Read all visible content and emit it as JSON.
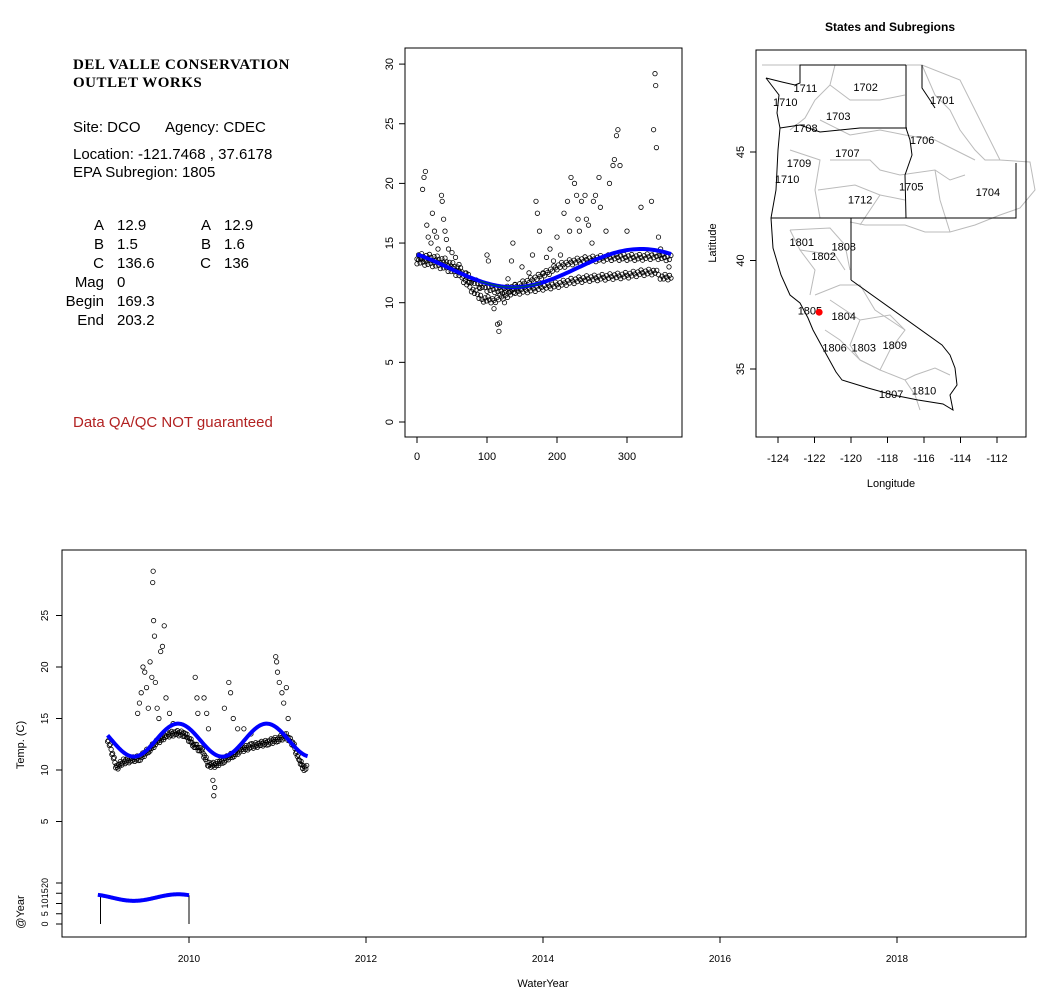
{
  "info": {
    "title_line1": "DEL VALLE CONSERVATION",
    "title_line2": "OUTLET WORKS",
    "site": "Site: DCO",
    "agency": "Agency: CDEC",
    "location": "Location: -121.7468 , 37.6178",
    "epa_subregion": "EPA Subregion: 1805",
    "params_left": [
      [
        "A",
        "12.9"
      ],
      [
        "B",
        "1.5"
      ],
      [
        "C",
        "136.6"
      ],
      [
        "Mag",
        "0"
      ],
      [
        "Begin",
        "169.3"
      ],
      [
        "End",
        "203.2"
      ]
    ],
    "params_right": [
      [
        "A",
        "12.9"
      ],
      [
        "B",
        "1.6"
      ],
      [
        "C",
        "136"
      ]
    ],
    "disclaimer": "Data QA/QC NOT guaranteed",
    "disclaimer_color": "#b22222"
  },
  "chart_data": [
    {
      "type": "scatter",
      "name": "seasonal",
      "xlabel": "",
      "ylabel": "",
      "xlim": [
        0,
        365
      ],
      "ylim": [
        0,
        30
      ],
      "xticks": [
        "0",
        "100",
        "200",
        "300"
      ],
      "yticks": [
        "0",
        "5",
        "10",
        "15",
        "20",
        "25",
        "30"
      ],
      "fit": {
        "mean": 12.9,
        "amplitude": 1.6,
        "peak_day": 320,
        "color": "#0000ff"
      },
      "trace_color": "#008000",
      "dense_traces": [
        [
          [
            0,
            13.5
          ],
          [
            20,
            13.3
          ],
          [
            40,
            13.0
          ],
          [
            60,
            12.4
          ],
          [
            80,
            11.0
          ],
          [
            95,
            10.3
          ],
          [
            110,
            10.2
          ],
          [
            125,
            10.6
          ],
          [
            140,
            10.9
          ],
          [
            160,
            11.1
          ],
          [
            180,
            11.3
          ],
          [
            200,
            11.5
          ],
          [
            220,
            11.8
          ],
          [
            240,
            12.0
          ],
          [
            260,
            12.1
          ],
          [
            280,
            12.2
          ],
          [
            300,
            12.3
          ],
          [
            320,
            12.5
          ],
          [
            340,
            12.6
          ],
          [
            350,
            12.1
          ],
          [
            365,
            12.2
          ]
        ],
        [
          [
            0,
            13.9
          ],
          [
            20,
            13.8
          ],
          [
            40,
            13.5
          ],
          [
            60,
            12.8
          ],
          [
            80,
            11.8
          ],
          [
            100,
            11.2
          ],
          [
            120,
            11.0
          ],
          [
            140,
            11.3
          ],
          [
            160,
            11.8
          ],
          [
            180,
            12.3
          ],
          [
            200,
            13.0
          ],
          [
            220,
            13.4
          ],
          [
            240,
            13.6
          ],
          [
            260,
            13.7
          ],
          [
            280,
            13.8
          ],
          [
            300,
            13.8
          ],
          [
            320,
            13.8
          ],
          [
            340,
            13.9
          ],
          [
            365,
            13.7
          ]
        ]
      ],
      "points": [
        [
          8,
          19.5
        ],
        [
          10,
          20.5
        ],
        [
          12,
          21
        ],
        [
          14,
          16.5
        ],
        [
          16,
          15.5
        ],
        [
          20,
          15
        ],
        [
          22,
          17.5
        ],
        [
          25,
          16
        ],
        [
          28,
          15.5
        ],
        [
          30,
          14.5
        ],
        [
          35,
          19
        ],
        [
          36,
          18.5
        ],
        [
          38,
          17
        ],
        [
          40,
          16
        ],
        [
          42,
          15.3
        ],
        [
          45,
          14.5
        ],
        [
          50,
          14.2
        ],
        [
          55,
          13.8
        ],
        [
          60,
          13.2
        ],
        [
          70,
          12.5
        ],
        [
          75,
          11.7
        ],
        [
          90,
          11.2
        ],
        [
          100,
          14
        ],
        [
          102,
          13.5
        ],
        [
          110,
          9.5
        ],
        [
          115,
          8.2
        ],
        [
          117,
          7.6
        ],
        [
          118,
          8.3
        ],
        [
          125,
          10
        ],
        [
          130,
          12
        ],
        [
          135,
          13.5
        ],
        [
          137,
          15
        ],
        [
          140,
          11.5
        ],
        [
          150,
          13
        ],
        [
          160,
          12.5
        ],
        [
          165,
          14
        ],
        [
          170,
          18.5
        ],
        [
          172,
          17.5
        ],
        [
          175,
          16
        ],
        [
          180,
          12.5
        ],
        [
          185,
          13.8
        ],
        [
          190,
          14.5
        ],
        [
          195,
          13.5
        ],
        [
          200,
          15.5
        ],
        [
          205,
          14
        ],
        [
          210,
          17.5
        ],
        [
          215,
          18.5
        ],
        [
          218,
          16
        ],
        [
          220,
          20.5
        ],
        [
          225,
          20
        ],
        [
          228,
          19
        ],
        [
          230,
          17
        ],
        [
          232,
          16
        ],
        [
          235,
          18.5
        ],
        [
          240,
          19
        ],
        [
          242,
          17
        ],
        [
          245,
          16.5
        ],
        [
          250,
          15
        ],
        [
          252,
          18.5
        ],
        [
          255,
          19
        ],
        [
          260,
          20.5
        ],
        [
          262,
          18
        ],
        [
          270,
          16
        ],
        [
          275,
          20
        ],
        [
          280,
          21.5
        ],
        [
          282,
          22
        ],
        [
          285,
          24
        ],
        [
          287,
          24.5
        ],
        [
          290,
          21.5
        ],
        [
          300,
          16
        ],
        [
          320,
          18
        ],
        [
          335,
          18.5
        ],
        [
          338,
          24.5
        ],
        [
          340,
          29.2
        ],
        [
          341,
          28.2
        ],
        [
          342,
          23
        ],
        [
          345,
          15.5
        ],
        [
          348,
          14.5
        ],
        [
          350,
          14
        ],
        [
          360,
          13
        ]
      ]
    },
    {
      "type": "map",
      "title": "States and Subregions",
      "xlabel": "Longitude",
      "ylabel": "Latitude",
      "xticks": [
        "-124",
        "-122",
        "-120",
        "-118",
        "-116",
        "-114",
        "-112"
      ],
      "yticks": [
        "35",
        "40",
        "45"
      ],
      "site": {
        "lon": -121.7468,
        "lat": 37.6178,
        "color": "#ff0000"
      },
      "labels": [
        [
          "1711",
          -122.5,
          47.95
        ],
        [
          "1702",
          -119.2,
          48.0
        ],
        [
          "1701",
          -115.0,
          47.4
        ],
        [
          "1710",
          -123.6,
          47.3
        ],
        [
          "1703",
          -120.7,
          46.65
        ],
        [
          "1708",
          -122.5,
          46.1
        ],
        [
          "1706",
          -116.1,
          45.55
        ],
        [
          "1707",
          -120.2,
          44.95
        ],
        [
          "1709",
          -122.85,
          44.5
        ],
        [
          "1710",
          -123.5,
          43.75
        ],
        [
          "1705",
          -116.7,
          43.4
        ],
        [
          "1704",
          -112.5,
          43.15
        ],
        [
          "1712",
          -119.5,
          42.8
        ],
        [
          "1801",
          -122.7,
          40.85
        ],
        [
          "1808",
          -120.4,
          40.65
        ],
        [
          "1802",
          -121.5,
          40.2
        ],
        [
          "1805",
          -122.25,
          37.7
        ],
        [
          "1804",
          -120.4,
          37.45
        ],
        [
          "1806",
          -120.9,
          36.0
        ],
        [
          "1803",
          -119.3,
          36.0
        ],
        [
          "1809",
          -117.6,
          36.1
        ],
        [
          "1807",
          -117.8,
          33.85
        ],
        [
          "1810",
          -116.0,
          34.0
        ]
      ]
    },
    {
      "type": "scatter",
      "name": "timeseries",
      "xlabel": "WaterYear",
      "ylabel": "Temp. (C)",
      "ylabel2": "@Year",
      "xlim": [
        2008.6,
        2019.4
      ],
      "ylim": [
        3,
        30
      ],
      "xticks": [
        "2010",
        "2012",
        "2014",
        "2016",
        "2018"
      ],
      "yticks": [
        "5",
        "10",
        "15",
        "20",
        "25"
      ],
      "yticks2": [
        "0",
        "5",
        "10",
        "15",
        "20"
      ],
      "fit": {
        "mean": 12.9,
        "amplitude": 1.6,
        "peak_offset": 0.877,
        "start": 2009.08,
        "end": 2011.34,
        "color": "#0000ff"
      },
      "annual_fit": {
        "start": 2008.97,
        "end": 2010.0,
        "marks": [
          2009,
          2010
        ]
      },
      "dense_trace": [
        [
          2009.08,
          13
        ],
        [
          2009.12,
          12
        ],
        [
          2009.18,
          10.2
        ],
        [
          2009.25,
          10.8
        ],
        [
          2009.35,
          11
        ],
        [
          2009.45,
          11.2
        ],
        [
          2009.55,
          12
        ],
        [
          2009.65,
          12.8
        ],
        [
          2009.75,
          13.4
        ],
        [
          2009.85,
          13.6
        ],
        [
          2009.95,
          13.5
        ],
        [
          2010.05,
          12.5
        ],
        [
          2010.15,
          11.8
        ],
        [
          2010.22,
          10.5
        ],
        [
          2010.3,
          10.5
        ],
        [
          2010.4,
          11
        ],
        [
          2010.5,
          11.5
        ],
        [
          2010.6,
          12
        ],
        [
          2010.7,
          12.3
        ],
        [
          2010.8,
          12.5
        ],
        [
          2010.9,
          12.7
        ],
        [
          2011.0,
          13
        ],
        [
          2011.1,
          13.3
        ],
        [
          2011.18,
          12.5
        ],
        [
          2011.25,
          10.8
        ],
        [
          2011.3,
          10.2
        ],
        [
          2011.34,
          10.2
        ]
      ],
      "points": [
        [
          2009.42,
          15.5
        ],
        [
          2009.44,
          16.5
        ],
        [
          2009.46,
          17.5
        ],
        [
          2009.48,
          20
        ],
        [
          2009.5,
          19.5
        ],
        [
          2009.52,
          18
        ],
        [
          2009.54,
          16
        ],
        [
          2009.56,
          20.5
        ],
        [
          2009.58,
          19
        ],
        [
          2009.59,
          28.2
        ],
        [
          2009.595,
          29.3
        ],
        [
          2009.6,
          24.5
        ],
        [
          2009.61,
          23
        ],
        [
          2009.62,
          18.5
        ],
        [
          2009.64,
          16
        ],
        [
          2009.66,
          15
        ],
        [
          2009.68,
          21.5
        ],
        [
          2009.7,
          22
        ],
        [
          2009.72,
          24
        ],
        [
          2009.74,
          17
        ],
        [
          2009.78,
          15.5
        ],
        [
          2009.82,
          14.5
        ],
        [
          2010.07,
          19
        ],
        [
          2010.09,
          17
        ],
        [
          2010.1,
          15.5
        ],
        [
          2010.17,
          17
        ],
        [
          2010.2,
          15.5
        ],
        [
          2010.22,
          14
        ],
        [
          2010.27,
          9
        ],
        [
          2010.28,
          7.5
        ],
        [
          2010.29,
          8.3
        ],
        [
          2010.4,
          16
        ],
        [
          2010.45,
          18.5
        ],
        [
          2010.47,
          17.5
        ],
        [
          2010.5,
          15
        ],
        [
          2010.55,
          14
        ],
        [
          2010.62,
          14
        ],
        [
          2010.7,
          13.5
        ],
        [
          2010.98,
          21
        ],
        [
          2010.99,
          20.5
        ],
        [
          2011.0,
          19.5
        ],
        [
          2011.02,
          18.5
        ],
        [
          2011.05,
          17.5
        ],
        [
          2011.07,
          16.5
        ],
        [
          2011.1,
          18
        ],
        [
          2011.12,
          15
        ]
      ]
    }
  ]
}
